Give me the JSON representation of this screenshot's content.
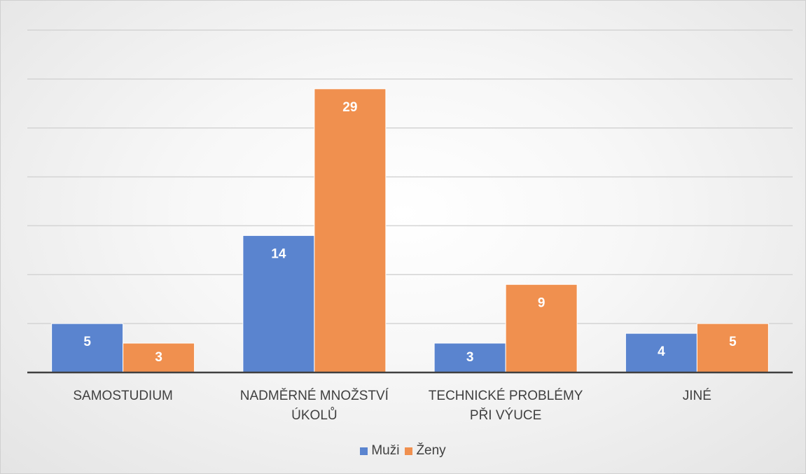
{
  "chart_data": {
    "type": "bar",
    "categories": [
      "SAMOSTUDIUM",
      "NADMĚRNÉ MNOŽSTVÍ ÚKOLŮ",
      "TECHNICKÉ PROBLÉMY PŘI VÝUCE",
      "JINÉ"
    ],
    "series": [
      {
        "name": "Muži",
        "color": "#5a84cf",
        "values": [
          5,
          14,
          3,
          4
        ]
      },
      {
        "name": "Ženy",
        "color": "#f0904f",
        "values": [
          3,
          29,
          9,
          5
        ]
      }
    ],
    "ylim": [
      0,
      35
    ],
    "yticks": [
      0,
      5,
      10,
      15,
      20,
      25,
      30,
      35
    ],
    "grid": true,
    "legend": "bottom"
  }
}
